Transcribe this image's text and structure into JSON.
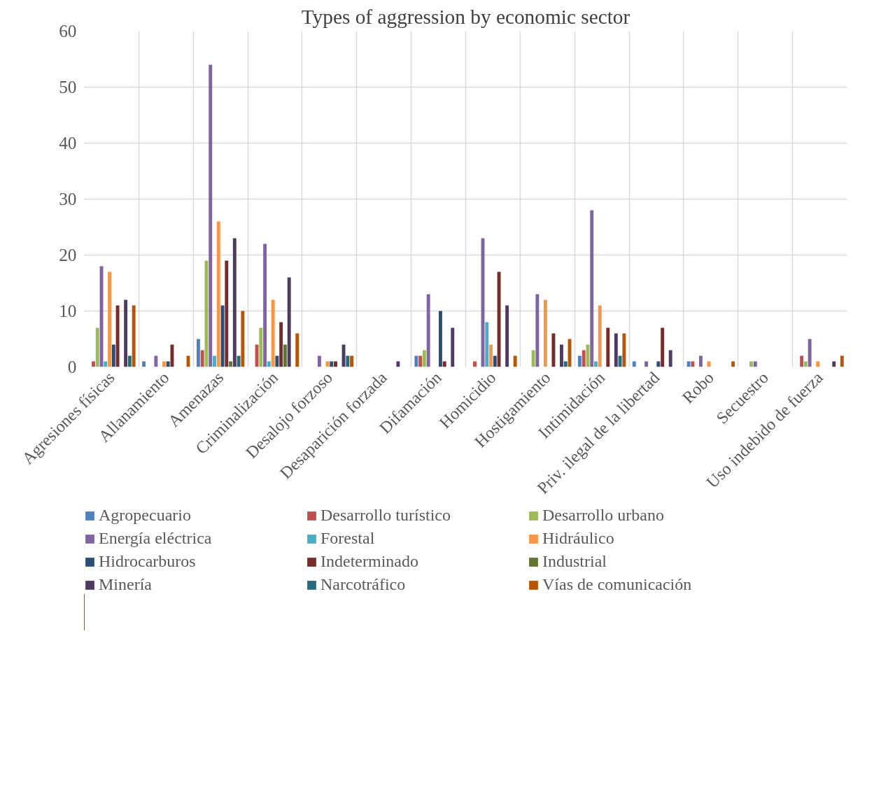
{
  "chart_data": {
    "type": "bar",
    "title": "Types of aggression by economic sector",
    "categories": [
      "Agresiones físicas",
      "Allanamiento",
      "Amenazas",
      "Criminalización",
      "Desalojo forzoso",
      "Desaparición forzada",
      "Difamación",
      "Homicidio",
      "Hostigamiento",
      "Intimidación",
      "Priv. ilegal de la libertad",
      "Robo",
      "Secuestro",
      "Uso indebido de fuerza"
    ],
    "ylim": [
      0,
      60
    ],
    "yticks": [
      0,
      10,
      20,
      30,
      40,
      50,
      60
    ],
    "grid": true,
    "legend": "bottom",
    "series": [
      {
        "name": "Agropecuario",
        "color": "#4f81bd",
        "values": [
          0,
          1,
          5,
          0,
          0,
          0,
          2,
          0,
          0,
          2,
          1,
          1,
          0,
          0
        ]
      },
      {
        "name": "Desarrollo turístico",
        "color": "#c0504d",
        "values": [
          1,
          0,
          3,
          4,
          0,
          0,
          2,
          1,
          0,
          3,
          0,
          1,
          0,
          2
        ]
      },
      {
        "name": "Desarrollo urbano",
        "color": "#9bbb59",
        "values": [
          7,
          0,
          19,
          7,
          0,
          0,
          3,
          0,
          3,
          4,
          0,
          0,
          1,
          1
        ]
      },
      {
        "name": "Energía eléctrica",
        "color": "#8064a2",
        "values": [
          18,
          2,
          54,
          22,
          2,
          0,
          13,
          23,
          13,
          28,
          1,
          2,
          1,
          5
        ]
      },
      {
        "name": "Forestal",
        "color": "#4bacc6",
        "values": [
          1,
          0,
          2,
          1,
          0,
          0,
          0,
          8,
          0,
          1,
          0,
          0,
          0,
          0
        ]
      },
      {
        "name": "Hidráulico",
        "color": "#f79646",
        "values": [
          17,
          1,
          26,
          12,
          1,
          0,
          0,
          4,
          12,
          11,
          0,
          1,
          0,
          1
        ]
      },
      {
        "name": "Hidrocarburos",
        "color": "#2c4d75",
        "values": [
          4,
          1,
          11,
          2,
          1,
          0,
          10,
          2,
          0,
          0,
          1,
          0,
          0,
          0
        ]
      },
      {
        "name": "Indeterminado",
        "color": "#772c2a",
        "values": [
          11,
          4,
          19,
          8,
          1,
          0,
          1,
          17,
          6,
          7,
          7,
          0,
          0,
          0
        ]
      },
      {
        "name": "Industrial",
        "color": "#5f7530",
        "values": [
          0,
          0,
          1,
          4,
          0,
          0,
          0,
          0,
          0,
          0,
          0,
          0,
          0,
          0
        ]
      },
      {
        "name": "Minería",
        "color": "#4d3b62",
        "values": [
          12,
          0,
          23,
          16,
          4,
          1,
          7,
          11,
          4,
          6,
          3,
          0,
          0,
          1
        ]
      },
      {
        "name": "Narcotráfico",
        "color": "#276a7c",
        "values": [
          2,
          0,
          2,
          0,
          2,
          0,
          0,
          0,
          1,
          2,
          0,
          0,
          0,
          0
        ]
      },
      {
        "name": "Vías de comunicación",
        "color": "#b65708",
        "values": [
          11,
          2,
          10,
          6,
          2,
          0,
          0,
          2,
          5,
          6,
          0,
          1,
          0,
          2
        ]
      }
    ]
  }
}
